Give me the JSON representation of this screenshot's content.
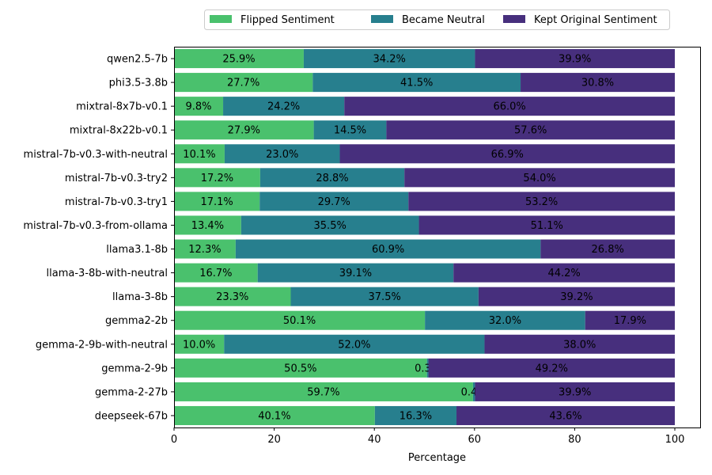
{
  "chart_data": {
    "type": "bar",
    "orientation": "horizontal",
    "stacked": true,
    "categories": [
      "qwen2.5-7b",
      "phi3.5-3.8b",
      "mixtral-8x7b-v0.1",
      "mixtral-8x22b-v0.1",
      "mistral-7b-v0.3-with-neutral",
      "mistral-7b-v0.3-try2",
      "mistral-7b-v0.3-try1",
      "mistral-7b-v0.3-from-ollama",
      "llama3.1-8b",
      "llama-3-8b-with-neutral",
      "llama-3-8b",
      "gemma2-2b",
      "gemma-2-9b-with-neutral",
      "gemma-2-9b",
      "gemma-2-27b",
      "deepseek-67b"
    ],
    "series": [
      {
        "name": "Flipped Sentiment",
        "color": "#4ac16d",
        "values": [
          25.9,
          27.7,
          9.8,
          27.9,
          10.1,
          17.2,
          17.1,
          13.4,
          12.3,
          16.7,
          23.3,
          50.1,
          10.0,
          50.5,
          59.7,
          40.1
        ],
        "labels": [
          "25.9%",
          "27.7%",
          "9.8%",
          "27.9%",
          "10.1%",
          "17.2%",
          "17.1%",
          "13.4%",
          "12.3%",
          "16.7%",
          "23.3%",
          "50.1%",
          "10.0%",
          "50.5%",
          "59.7%",
          "40.1%"
        ]
      },
      {
        "name": "Became Neutral",
        "color": "#277f8e",
        "values": [
          34.2,
          41.5,
          24.2,
          14.5,
          23.0,
          28.8,
          29.7,
          35.5,
          60.9,
          39.1,
          37.5,
          32.0,
          52.0,
          0.3,
          0.4,
          16.3
        ],
        "labels": [
          "34.2%",
          "41.5%",
          "24.2%",
          "14.5%",
          "23.0%",
          "28.8%",
          "29.7%",
          "35.5%",
          "60.9%",
          "39.1%",
          "37.5%",
          "32.0%",
          "52.0%",
          "0.3%",
          "0.4%",
          "16.3%"
        ]
      },
      {
        "name": "Kept Original Sentiment",
        "color": "#472f7d",
        "values": [
          39.9,
          30.8,
          66.0,
          57.6,
          66.9,
          54.0,
          53.2,
          51.1,
          26.8,
          44.2,
          39.2,
          17.9,
          38.0,
          49.2,
          39.9,
          43.6
        ],
        "labels": [
          "39.9%",
          "30.8%",
          "66.0%",
          "57.6%",
          "66.9%",
          "54.0%",
          "53.2%",
          "51.1%",
          "26.8%",
          "44.2%",
          "39.2%",
          "17.9%",
          "38.0%",
          "49.2%",
          "39.9%",
          "43.6%"
        ]
      }
    ],
    "xlabel": "Percentage",
    "ylabel": "",
    "xlim": [
      0,
      100
    ],
    "xticks": [
      0,
      20,
      40,
      60,
      80,
      100
    ],
    "xtick_labels": [
      "0",
      "20",
      "40",
      "60",
      "80",
      "100"
    ],
    "grid": false,
    "legend_position": "top-center"
  }
}
